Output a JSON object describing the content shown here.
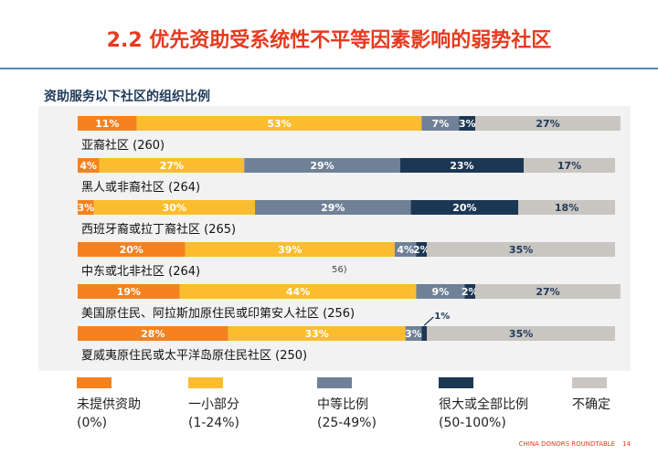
{
  "slide": {
    "title": "2.2 优先资助受系统性不平等因素影响的弱势社区",
    "subtitle": "资助服务以下社区的组织比例",
    "footer_brand": "CHINA DONORS ROUNDTABLE",
    "page_number": "14"
  },
  "colors": {
    "title": "#e63a1f",
    "rule": "#4f86b8",
    "subtitle": "#1f3a5a",
    "panel": "#f2f2f2"
  },
  "chart_data": {
    "type": "bar",
    "orientation": "horizontal",
    "stacked": true,
    "unit": "%",
    "xlim": [
      0,
      100
    ],
    "categories": [
      "亚裔社区 (260)",
      "黑人或非裔社区 (264)",
      "西班牙裔或拉丁裔社区 (265)",
      "中东或北非社区 (264)",
      "美国原住民、阿拉斯加原住民或印第安人社区 (256)",
      "夏威夷原住民或太平洋岛原住民社区 (250)"
    ],
    "series": [
      {
        "name": "未提供资助 (0%)",
        "color": "#f5821f",
        "values": [
          11,
          4,
          3,
          20,
          19,
          28
        ]
      },
      {
        "name": "一小部分 (1-24%)",
        "color": "#fbbd2e",
        "values": [
          53,
          27,
          30,
          39,
          44,
          33
        ]
      },
      {
        "name": "中等比例 (25-49%)",
        "color": "#6f8196",
        "values": [
          7,
          29,
          29,
          4,
          9,
          3
        ]
      },
      {
        "name": "很大或全部比例 (50-100%)",
        "color": "#1c3753",
        "values": [
          3,
          23,
          20,
          2,
          2,
          1
        ]
      },
      {
        "name": "不确定",
        "color": "#c9c5c1",
        "values": [
          27,
          17,
          18,
          35,
          27,
          35
        ]
      }
    ],
    "segment_labels": [
      [
        "11%",
        "53%",
        "7%",
        "3%",
        "27%"
      ],
      [
        "4%",
        "27%",
        "29%",
        "23%",
        "17%"
      ],
      [
        "3%",
        "30%",
        "29%",
        "20%",
        "18%"
      ],
      [
        "20%",
        "39%",
        "4%",
        "2%",
        "35%"
      ],
      [
        "19%",
        "44%",
        "9%",
        "2%",
        "27%"
      ],
      [
        "28%",
        "33%",
        "3%",
        "1%",
        "35%"
      ]
    ],
    "stray_text": "56)",
    "legend": [
      {
        "label": "未提供资助\n(0%)",
        "color": "#f5821f"
      },
      {
        "label": "一小部分\n(1-24%)",
        "color": "#fbbd2e"
      },
      {
        "label": "中等比例\n(25-49%)",
        "color": "#6f8196"
      },
      {
        "label": "很大或全部比例\n(50-100%)",
        "color": "#1c3753"
      },
      {
        "label": "不确定",
        "color": "#c9c5c1"
      }
    ]
  }
}
